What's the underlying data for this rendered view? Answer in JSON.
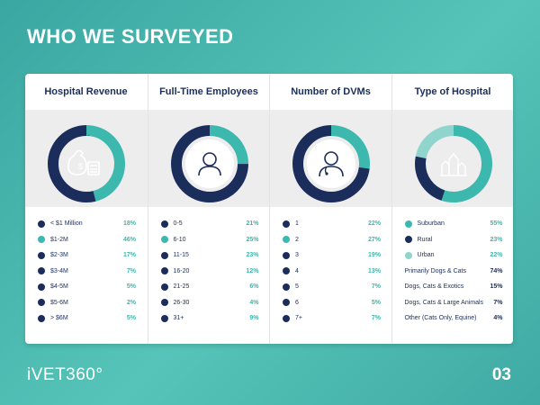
{
  "page": {
    "title": "WHO WE SURVEYED",
    "brand": "iVET360°",
    "page_number": "03"
  },
  "colors": {
    "navy": "#1b2d5b",
    "teal": "#3cb8ae",
    "light_teal": "#8fd5cd",
    "grey_band": "#ededed"
  },
  "columns": [
    {
      "title": "Hospital Revenue",
      "icon": "money-bag-calculator-icon",
      "donut": [
        {
          "label": "$1-2M",
          "value": 46,
          "color": "#3cb8ae"
        },
        {
          "label": "other",
          "value": 54,
          "color": "#1b2d5b"
        }
      ],
      "rows": [
        {
          "label": "< $1 Million",
          "pct": "18%",
          "dot": "#1b2d5b"
        },
        {
          "label": "$1-2M",
          "pct": "46%",
          "dot": "#3cb8ae"
        },
        {
          "label": "$2-3M",
          "pct": "17%",
          "dot": "#1b2d5b"
        },
        {
          "label": "$3-4M",
          "pct": "7%",
          "dot": "#1b2d5b"
        },
        {
          "label": "$4-5M",
          "pct": "5%",
          "dot": "#1b2d5b"
        },
        {
          "label": "$5-6M",
          "pct": "2%",
          "dot": "#1b2d5b"
        },
        {
          "label": "> $6M",
          "pct": "5%",
          "dot": "#1b2d5b"
        }
      ]
    },
    {
      "title": "Full-Time Employees",
      "icon": "person-icon",
      "donut": [
        {
          "label": "6-10",
          "value": 25,
          "color": "#3cb8ae"
        },
        {
          "label": "other",
          "value": 75,
          "color": "#1b2d5b"
        }
      ],
      "rows": [
        {
          "label": "0-5",
          "pct": "21%",
          "dot": "#1b2d5b"
        },
        {
          "label": "6-10",
          "pct": "25%",
          "dot": "#3cb8ae"
        },
        {
          "label": "11-15",
          "pct": "23%",
          "dot": "#1b2d5b"
        },
        {
          "label": "16-20",
          "pct": "12%",
          "dot": "#1b2d5b"
        },
        {
          "label": "21-25",
          "pct": "6%",
          "dot": "#1b2d5b"
        },
        {
          "label": "26-30",
          "pct": "4%",
          "dot": "#1b2d5b"
        },
        {
          "label": "31+",
          "pct": "9%",
          "dot": "#1b2d5b"
        }
      ]
    },
    {
      "title": "Number of DVMs",
      "icon": "veterinarian-icon",
      "donut": [
        {
          "label": "2",
          "value": 27,
          "color": "#3cb8ae"
        },
        {
          "label": "other",
          "value": 73,
          "color": "#1b2d5b"
        }
      ],
      "rows": [
        {
          "label": "1",
          "pct": "22%",
          "dot": "#1b2d5b"
        },
        {
          "label": "2",
          "pct": "27%",
          "dot": "#3cb8ae"
        },
        {
          "label": "3",
          "pct": "19%",
          "dot": "#1b2d5b"
        },
        {
          "label": "4",
          "pct": "13%",
          "dot": "#1b2d5b"
        },
        {
          "label": "5",
          "pct": "7%",
          "dot": "#1b2d5b"
        },
        {
          "label": "6",
          "pct": "5%",
          "dot": "#1b2d5b"
        },
        {
          "label": "7+",
          "pct": "7%",
          "dot": "#1b2d5b"
        }
      ]
    },
    {
      "title": "Type of Hospital",
      "icon": "city-buildings-icon",
      "donut": [
        {
          "label": "Suburban",
          "value": 55,
          "color": "#3cb8ae"
        },
        {
          "label": "Rural",
          "value": 23,
          "color": "#1b2d5b"
        },
        {
          "label": "Urban",
          "value": 22,
          "color": "#8fd5cd"
        }
      ],
      "rows": [
        {
          "label": "Suburban",
          "pct": "55%",
          "dot": "#3cb8ae"
        },
        {
          "label": "Rural",
          "pct": "23%",
          "dot": "#1b2d5b"
        },
        {
          "label": "Urban",
          "pct": "22%",
          "dot": "#8fd5cd"
        },
        {
          "label": "Primarily Dogs & Cats",
          "pct": "74%",
          "dot": ""
        },
        {
          "label": "Dogs, Cats & Exotics",
          "pct": "15%",
          "dot": ""
        },
        {
          "label": "Dogs, Cats & Large Animals",
          "pct": "7%",
          "dot": ""
        },
        {
          "label": "Other (Cats Only, Equine)",
          "pct": "4%",
          "dot": ""
        }
      ]
    }
  ]
}
